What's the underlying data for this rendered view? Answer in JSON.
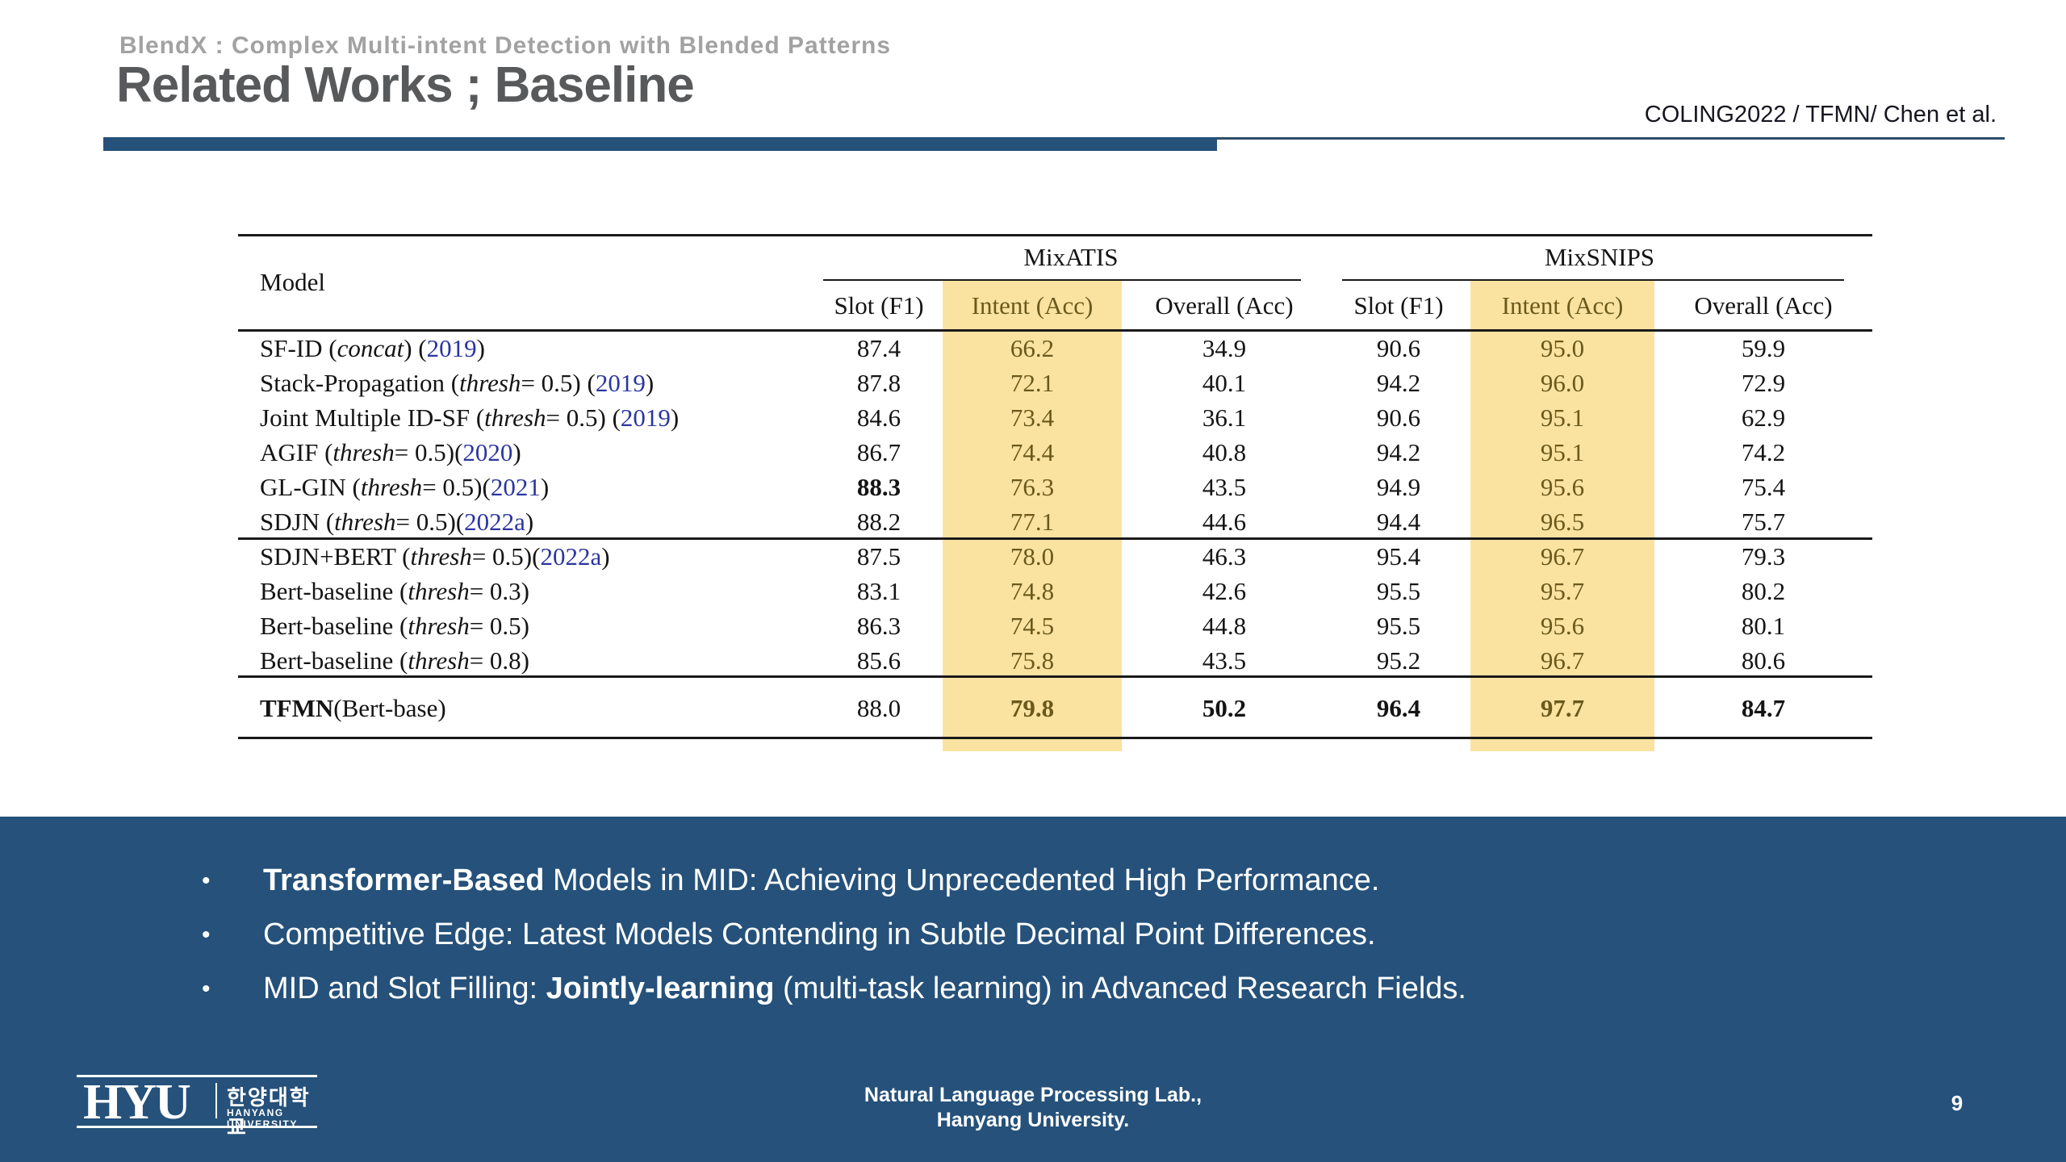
{
  "header": {
    "kicker": "BlendX : Complex Multi-intent Detection with Blended Patterns",
    "title": "Related Works ; Baseline",
    "reference": "COLING2022 / TFMN/ Chen et al."
  },
  "table": {
    "model_header": "Model",
    "groups": [
      {
        "label": "MixATIS",
        "columns": [
          "Slot (F1)",
          "Intent (Acc)",
          "Overall (Acc)"
        ]
      },
      {
        "label": "MixSNIPS",
        "columns": [
          "Slot (F1)",
          "Intent (Acc)",
          "Overall (Acc)"
        ]
      }
    ],
    "sections": [
      {
        "rows": [
          {
            "model": [
              {
                "t": "SF-ID ("
              },
              {
                "t": "concat",
                "i": 1
              },
              {
                "t": ") ("
              },
              {
                "t": "2019",
                "y": 1
              },
              {
                "t": ")"
              }
            ],
            "values": [
              {
                "v": "87.4"
              },
              {
                "v": "66.2"
              },
              {
                "v": "34.9"
              },
              {
                "v": "90.6"
              },
              {
                "v": "95.0"
              },
              {
                "v": "59.9"
              }
            ]
          },
          {
            "model": [
              {
                "t": "Stack-Propagation ("
              },
              {
                "t": "thresh",
                "i": 1
              },
              {
                "t": " = 0.5) ("
              },
              {
                "t": "2019",
                "y": 1
              },
              {
                "t": ")"
              }
            ],
            "values": [
              {
                "v": "87.8"
              },
              {
                "v": "72.1"
              },
              {
                "v": "40.1"
              },
              {
                "v": "94.2"
              },
              {
                "v": "96.0"
              },
              {
                "v": "72.9"
              }
            ]
          },
          {
            "model": [
              {
                "t": "Joint Multiple ID-SF ("
              },
              {
                "t": "thresh",
                "i": 1
              },
              {
                "t": " = 0.5) ("
              },
              {
                "t": "2019",
                "y": 1
              },
              {
                "t": ")"
              }
            ],
            "values": [
              {
                "v": "84.6"
              },
              {
                "v": "73.4"
              },
              {
                "v": "36.1"
              },
              {
                "v": "90.6"
              },
              {
                "v": "95.1"
              },
              {
                "v": "62.9"
              }
            ]
          },
          {
            "model": [
              {
                "t": "AGIF ("
              },
              {
                "t": "thresh",
                "i": 1
              },
              {
                "t": " = 0.5)("
              },
              {
                "t": "2020",
                "y": 1
              },
              {
                "t": ")"
              }
            ],
            "values": [
              {
                "v": "86.7"
              },
              {
                "v": "74.4"
              },
              {
                "v": "40.8"
              },
              {
                "v": "94.2"
              },
              {
                "v": "95.1"
              },
              {
                "v": "74.2"
              }
            ]
          },
          {
            "model": [
              {
                "t": "GL-GIN ("
              },
              {
                "t": "thresh",
                "i": 1
              },
              {
                "t": " = 0.5)("
              },
              {
                "t": "2021",
                "y": 1
              },
              {
                "t": ")"
              }
            ],
            "values": [
              {
                "v": "88.3",
                "b": 1
              },
              {
                "v": "76.3"
              },
              {
                "v": "43.5"
              },
              {
                "v": "94.9"
              },
              {
                "v": "95.6"
              },
              {
                "v": "75.4"
              }
            ]
          },
          {
            "model": [
              {
                "t": "SDJN ("
              },
              {
                "t": "thresh",
                "i": 1
              },
              {
                "t": " = 0.5)("
              },
              {
                "t": "2022a",
                "y": 1
              },
              {
                "t": ")"
              }
            ],
            "values": [
              {
                "v": "88.2"
              },
              {
                "v": "77.1"
              },
              {
                "v": "44.6"
              },
              {
                "v": "94.4"
              },
              {
                "v": "96.5"
              },
              {
                "v": "75.7"
              }
            ]
          }
        ]
      },
      {
        "rows": [
          {
            "model": [
              {
                "t": "SDJN+BERT ("
              },
              {
                "t": "thresh",
                "i": 1
              },
              {
                "t": " = 0.5)("
              },
              {
                "t": "2022a",
                "y": 1
              },
              {
                "t": ")"
              }
            ],
            "values": [
              {
                "v": "87.5"
              },
              {
                "v": "78.0"
              },
              {
                "v": "46.3"
              },
              {
                "v": "95.4"
              },
              {
                "v": "96.7"
              },
              {
                "v": "79.3"
              }
            ]
          },
          {
            "model": [
              {
                "t": "Bert-baseline ("
              },
              {
                "t": "thresh",
                "i": 1
              },
              {
                "t": " = 0.3)"
              }
            ],
            "values": [
              {
                "v": "83.1"
              },
              {
                "v": "74.8"
              },
              {
                "v": "42.6"
              },
              {
                "v": "95.5"
              },
              {
                "v": "95.7"
              },
              {
                "v": "80.2"
              }
            ]
          },
          {
            "model": [
              {
                "t": "Bert-baseline ("
              },
              {
                "t": "thresh",
                "i": 1
              },
              {
                "t": " = 0.5)"
              }
            ],
            "values": [
              {
                "v": "86.3"
              },
              {
                "v": "74.5"
              },
              {
                "v": "44.8"
              },
              {
                "v": "95.5"
              },
              {
                "v": "95.6"
              },
              {
                "v": "80.1"
              }
            ]
          },
          {
            "model": [
              {
                "t": "Bert-baseline ("
              },
              {
                "t": "thresh",
                "i": 1
              },
              {
                "t": " = 0.8)"
              }
            ],
            "values": [
              {
                "v": "85.6"
              },
              {
                "v": "75.8"
              },
              {
                "v": "43.5"
              },
              {
                "v": "95.2"
              },
              {
                "v": "96.7"
              },
              {
                "v": "80.6"
              }
            ]
          }
        ]
      },
      {
        "rows": [
          {
            "model": [
              {
                "t": "TFMN",
                "b": 1
              },
              {
                "t": " (Bert-base)"
              }
            ],
            "values": [
              {
                "v": "88.0"
              },
              {
                "v": "79.8",
                "b": 1
              },
              {
                "v": "50.2",
                "b": 1
              },
              {
                "v": "96.4",
                "b": 1
              },
              {
                "v": "97.7",
                "b": 1
              },
              {
                "v": "84.7",
                "b": 1
              }
            ]
          }
        ]
      }
    ]
  },
  "bullets": [
    [
      {
        "t": "Transformer-Based",
        "b": 1
      },
      {
        "t": " Models in MID: Achieving Unprecedented High Performance."
      }
    ],
    [
      {
        "t": "Competitive Edge: Latest Models Contending in Subtle Decimal Point Differences."
      }
    ],
    [
      {
        "t": "MID and Slot Filling: "
      },
      {
        "t": "Jointly-learning",
        "b": 1
      },
      {
        "t": " (multi-task learning) in Advanced Research Fields."
      }
    ]
  ],
  "footer": {
    "logo_acronym": "HYU",
    "logo_korean": "한양대학교",
    "logo_university": "HANYANG UNIVERSITY",
    "lab_line1": "Natural Language Processing Lab.,",
    "lab_line2": "Hanyang University.",
    "page_number": "9"
  },
  "colors": {
    "banner_blue": "#25517a",
    "underline_blue": "#25517a",
    "highlight_yellow": "#fae3a1",
    "intent_text": "#6a591c",
    "year_link_blue": "#2b35a1",
    "title_gray": "#58595b",
    "kicker_gray": "#a2a2a2"
  }
}
